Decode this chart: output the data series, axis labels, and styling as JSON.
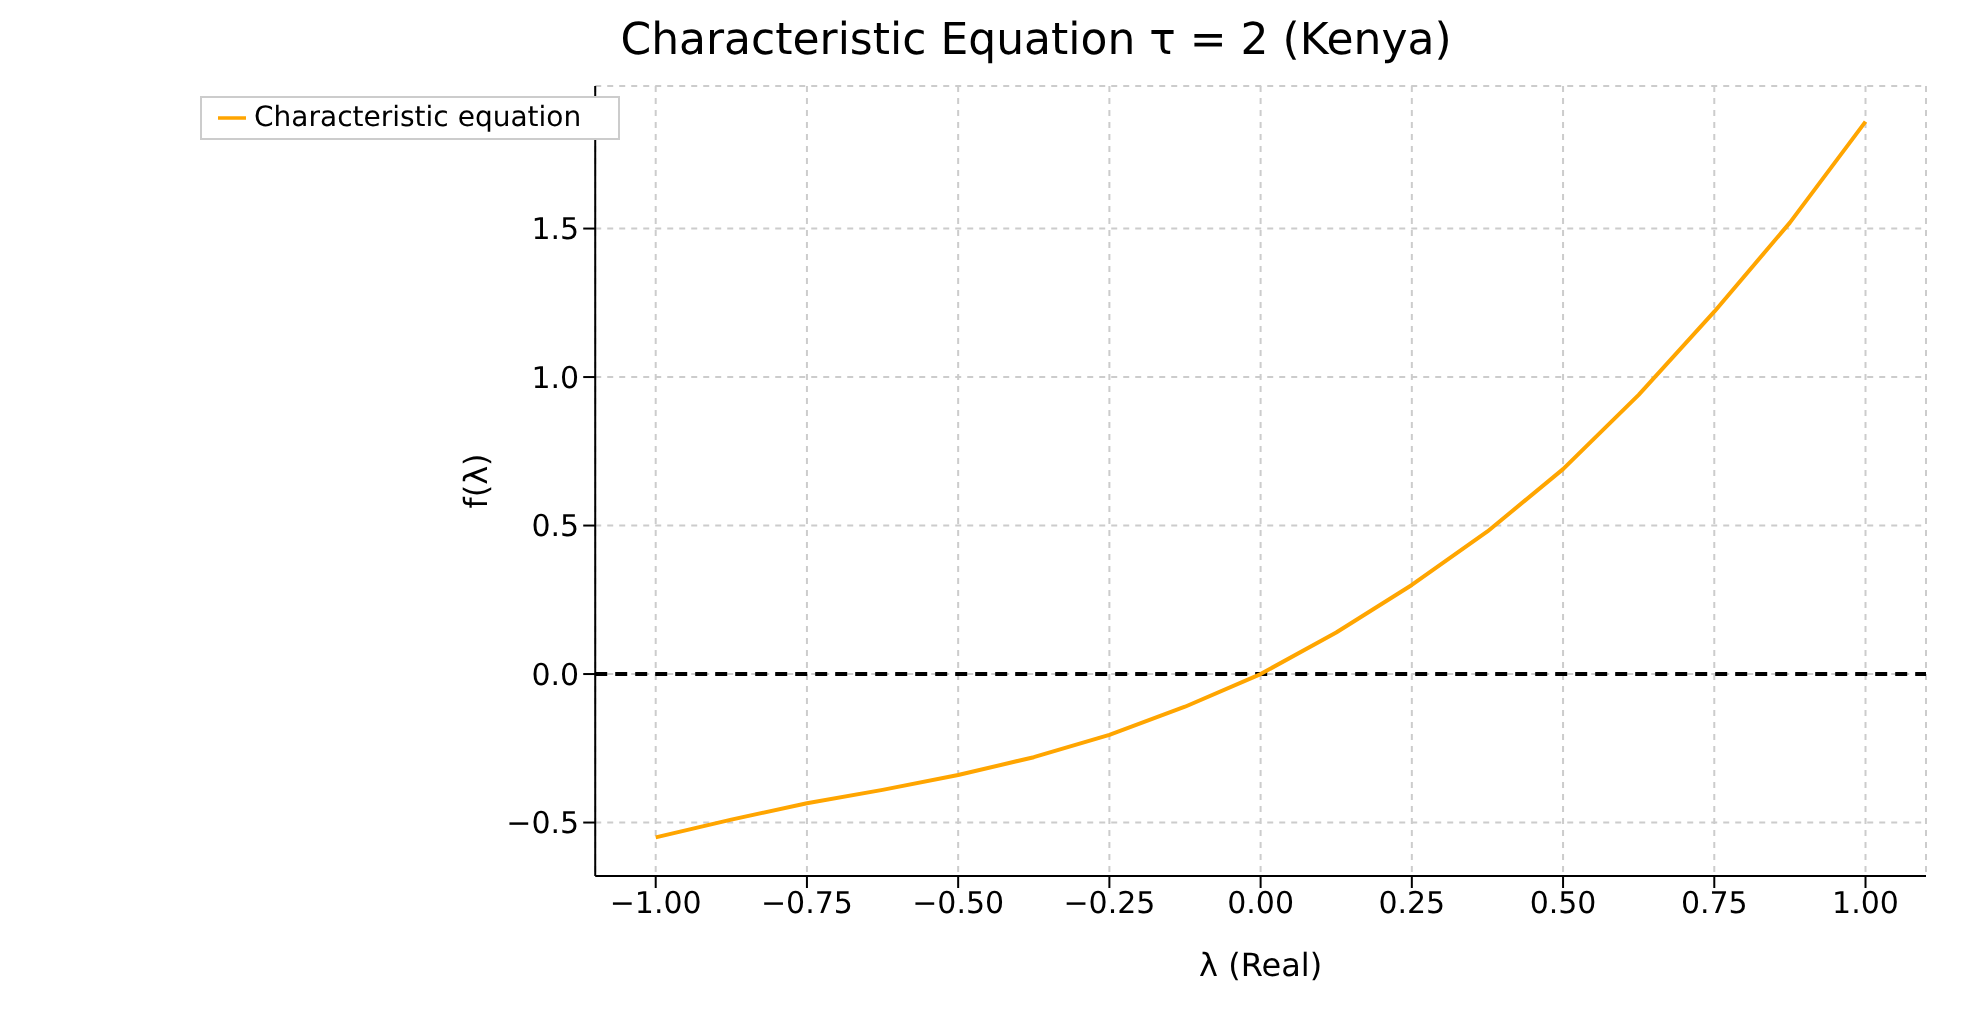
{
  "chart_data": {
    "type": "line",
    "title": "Characteristic Equation τ = 2 (Kenya)",
    "xlabel": "λ (Real)",
    "ylabel": "f(λ)",
    "x": [
      -1,
      -0.875,
      -0.75,
      -0.625,
      -0.5,
      -0.375,
      -0.25,
      -0.125,
      0,
      0.125,
      0.25,
      0.375,
      0.5,
      0.625,
      0.75,
      0.875,
      1
    ],
    "series": [
      {
        "name": "Characteristic equation",
        "color": "#ffa500",
        "values": [
          -0.55,
          -0.49,
          -0.435,
          -0.39,
          -0.34,
          -0.28,
          -0.205,
          -0.11,
          0,
          0.14,
          0.3,
          0.48,
          0.69,
          0.94,
          1.22,
          1.52,
          1.86
        ]
      }
    ],
    "xlim": [
      -1.1,
      1.1
    ],
    "ylim": [
      -0.68,
      1.98
    ],
    "xticks": [
      {
        "value": -1,
        "label": "−1.00"
      },
      {
        "value": -0.75,
        "label": "−0.75"
      },
      {
        "value": -0.5,
        "label": "−0.50"
      },
      {
        "value": -0.25,
        "label": "−0.25"
      },
      {
        "value": 0,
        "label": "0.00"
      },
      {
        "value": 0.25,
        "label": "0.25"
      },
      {
        "value": 0.5,
        "label": "0.50"
      },
      {
        "value": 0.75,
        "label": "0.75"
      },
      {
        "value": 1,
        "label": "1.00"
      }
    ],
    "yticks": [
      {
        "value": -0.5,
        "label": "−0.5"
      },
      {
        "value": 0,
        "label": "0.0"
      },
      {
        "value": 0.5,
        "label": "0.5"
      },
      {
        "value": 1,
        "label": "1.0"
      },
      {
        "value": 1.5,
        "label": "1.5"
      }
    ],
    "ref_lines": [
      {
        "axis": "y",
        "value": 0,
        "color": "#000000",
        "line_style": "dashed"
      }
    ],
    "grid": true,
    "legend": "top left",
    "marker": "none",
    "line_style": "solid"
  }
}
